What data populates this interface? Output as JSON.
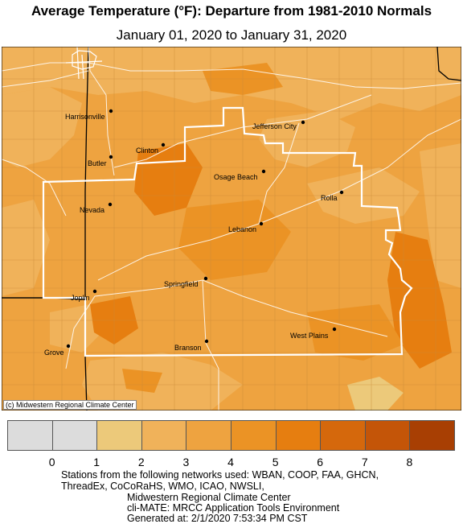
{
  "header": {
    "title": "Average Temperature (°F): Departure from 1981-2010 Normals",
    "subtitle": "January 01, 2020 to January 31, 2020"
  },
  "copyright": "(c) Midwestern Regional Climate Center",
  "cities": [
    {
      "name": "Harrisonville"
    },
    {
      "name": "Jefferson City"
    },
    {
      "name": "Clinton"
    },
    {
      "name": "Butler"
    },
    {
      "name": "Osage Beach"
    },
    {
      "name": "Rolla"
    },
    {
      "name": "Nevada"
    },
    {
      "name": "Lebanon"
    },
    {
      "name": "Springfield"
    },
    {
      "name": "Joplin"
    },
    {
      "name": "West Plains"
    },
    {
      "name": "Branson"
    },
    {
      "name": "Grove"
    }
  ],
  "legend": {
    "ticks": [
      "0",
      "1",
      "2",
      "3",
      "4",
      "5",
      "6",
      "7",
      "8"
    ],
    "colors": [
      "#dcdcdc",
      "#dcdcdc",
      "#ecc97a",
      "#f0b25a",
      "#eea340",
      "#eb9325",
      "#e67e10",
      "#d5680c",
      "#c45508",
      "#a83f03"
    ]
  },
  "footer": {
    "line1": "Stations from the following networks used: WBAN, COOP, FAA, GHCN,",
    "line2": "ThreadEx, CoCoRaHS, WMO, ICAO, NWSLI,",
    "line3": "Midwestern Regional Climate Center",
    "line4": "cli-MATE: MRCC Application Tools Environment",
    "line5": "Generated at: 2/1/2020 7:53:34 PM CST"
  }
}
